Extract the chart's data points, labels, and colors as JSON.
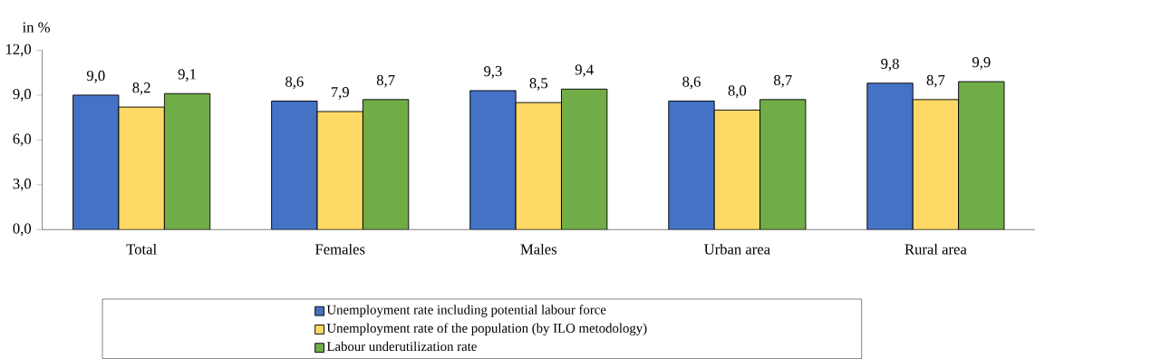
{
  "chart_data": {
    "type": "bar",
    "ylabel": "in %",
    "categories": [
      "Total",
      "Females",
      "Males",
      "Urban area",
      "Rural area"
    ],
    "series": [
      {
        "name": "Unemployment rate including potential labour force",
        "color": "#4472c4",
        "values": [
          9.0,
          8.6,
          9.3,
          8.6,
          9.8
        ],
        "value_labels": [
          "9,0",
          "8,6",
          "9,3",
          "8,6",
          "9,8"
        ]
      },
      {
        "name": "Unemployment rate of the population (by ILO metodology)",
        "color": "#ffd966",
        "values": [
          8.2,
          7.9,
          8.5,
          8.0,
          8.7
        ],
        "value_labels": [
          "8,2",
          "7,9",
          "8,5",
          "8,0",
          "8,7"
        ]
      },
      {
        "name": "Labour underutilization rate",
        "color": "#70ad47",
        "values": [
          9.1,
          8.7,
          9.4,
          8.7,
          9.9
        ],
        "value_labels": [
          "9,1",
          "8,7",
          "9,4",
          "8,7",
          "9,9"
        ]
      }
    ],
    "ylim": [
      0,
      12
    ],
    "yticks": [
      {
        "value": 0,
        "label": "0,0"
      },
      {
        "value": 3,
        "label": "3,0"
      },
      {
        "value": 6,
        "label": "6,0"
      },
      {
        "value": 9,
        "label": "9,0"
      },
      {
        "value": 12,
        "label": "12,0"
      }
    ],
    "grid": false,
    "legend": "bottom"
  }
}
